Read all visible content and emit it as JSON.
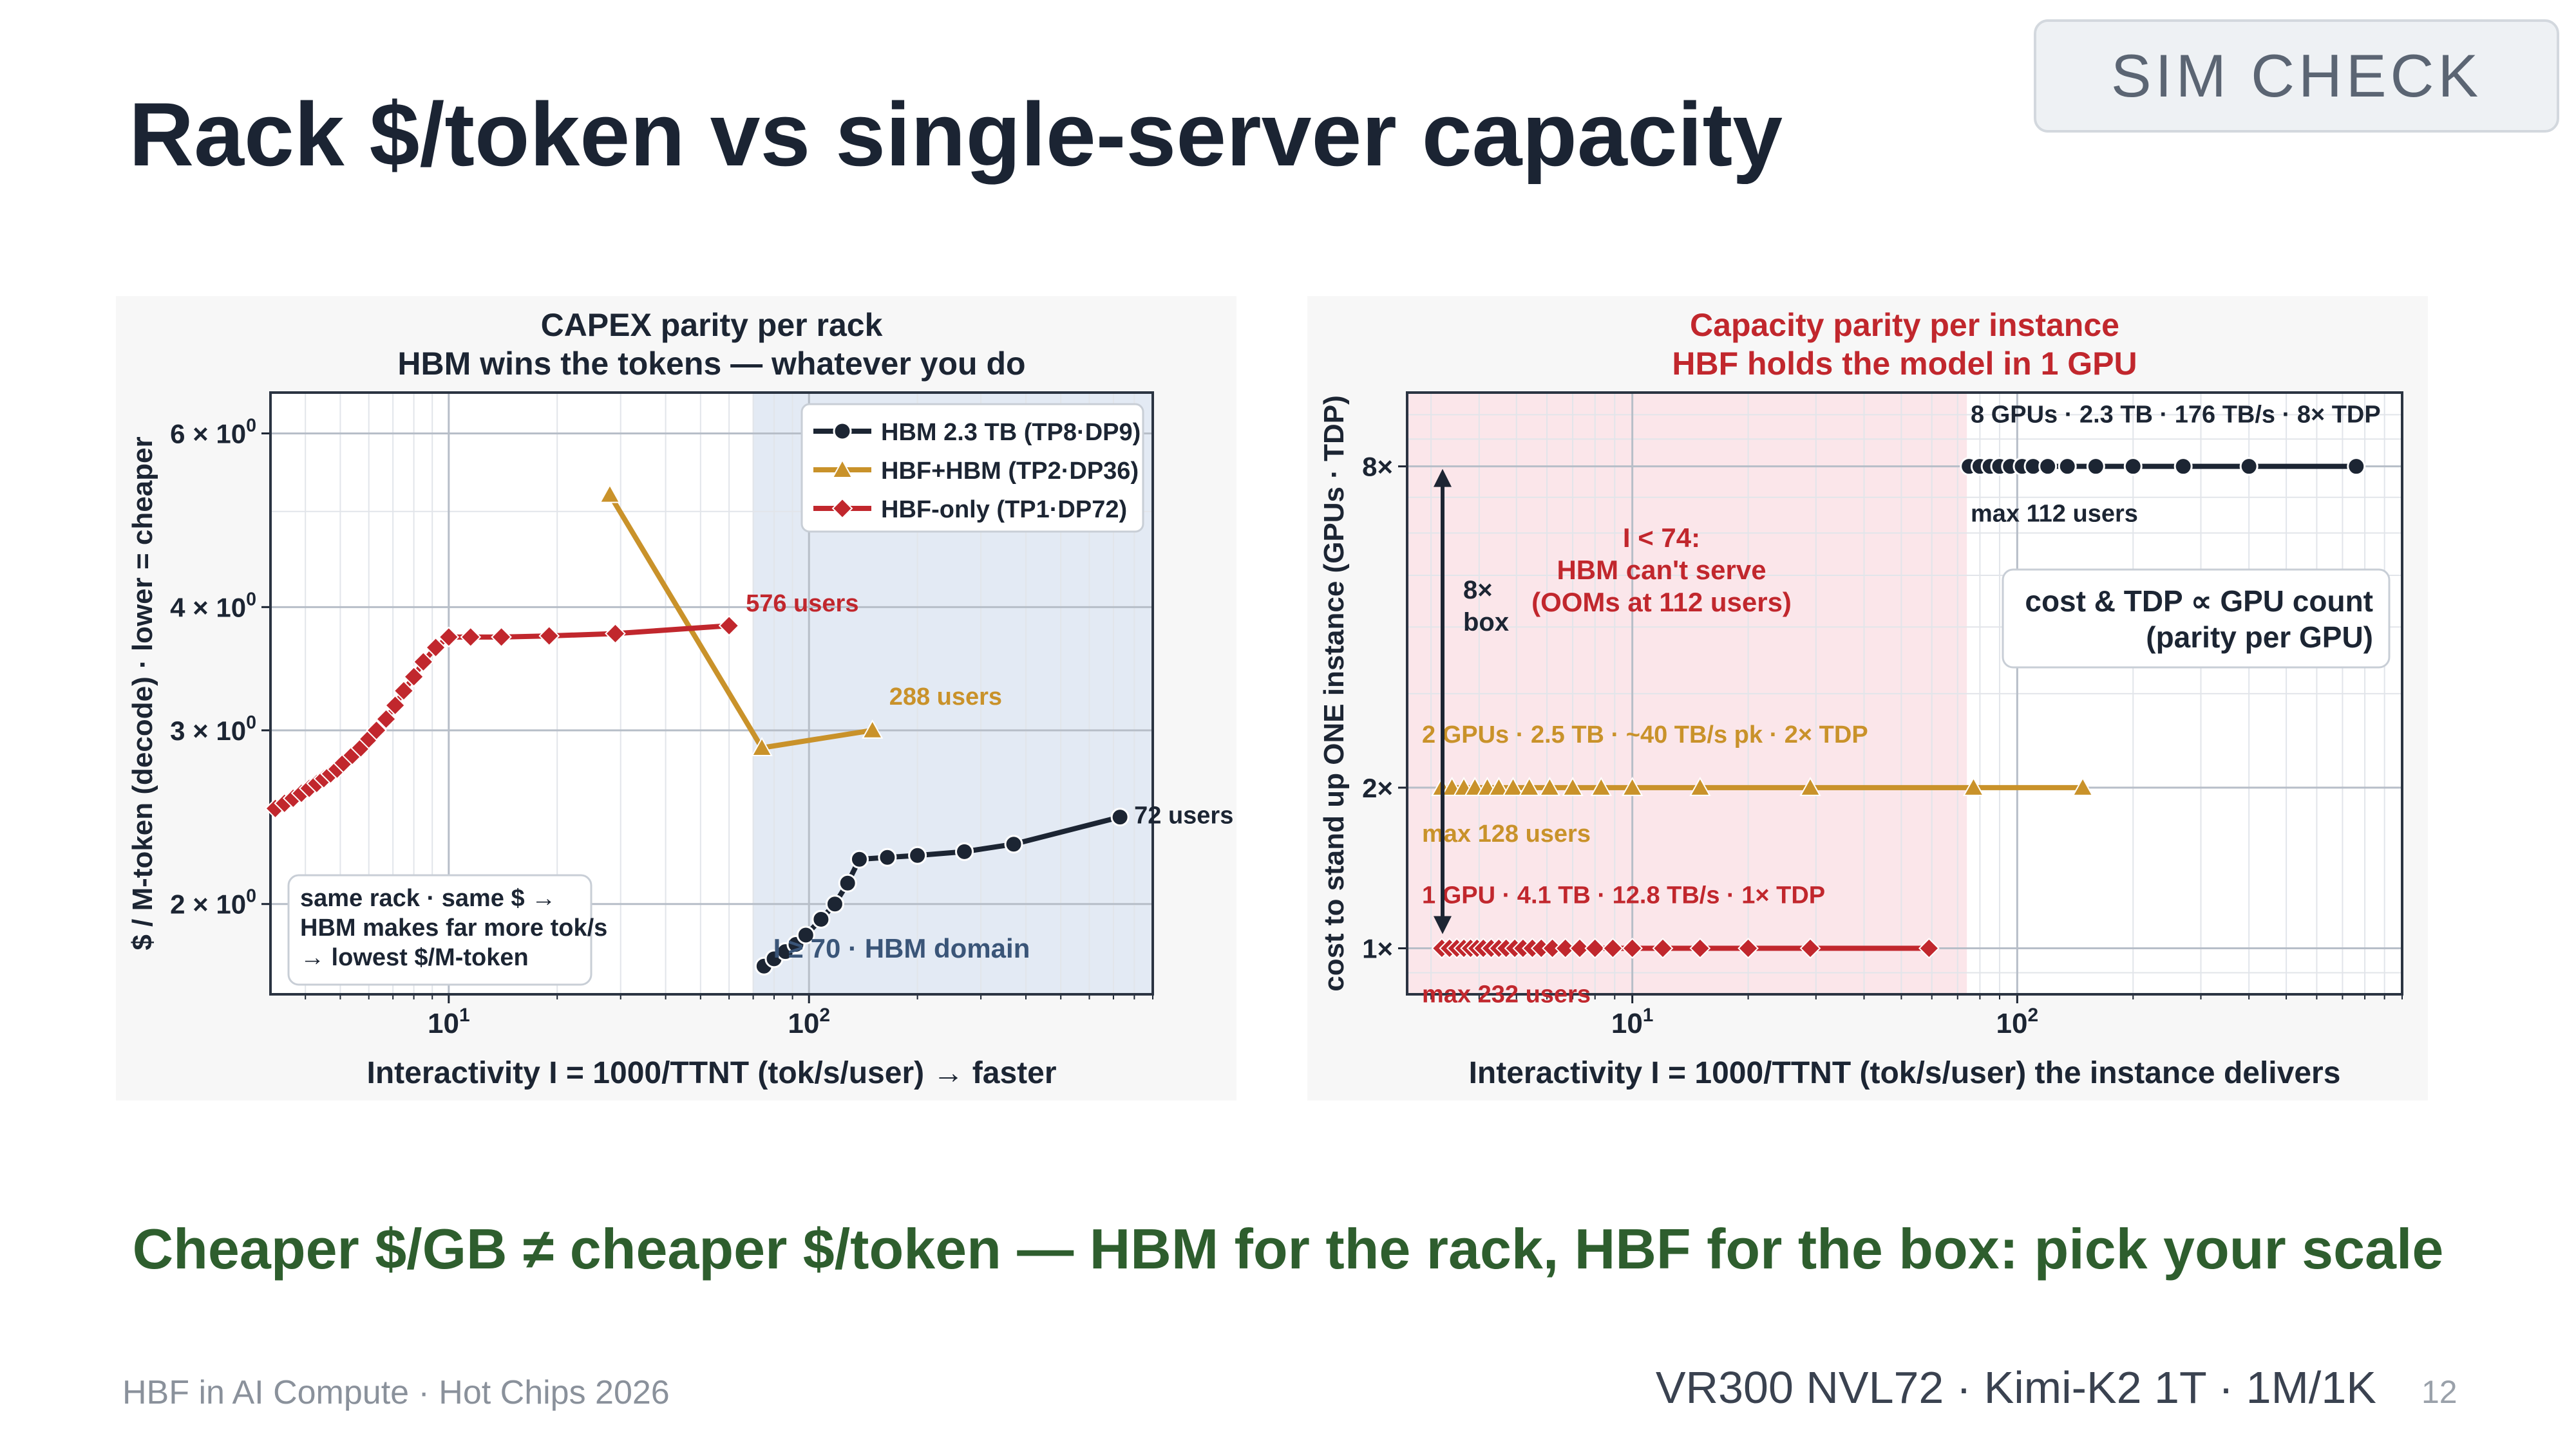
{
  "slide": {
    "badge": "SIM CHECK",
    "title": "Rack $/token  vs  single-server capacity",
    "tagline": "Cheaper $/GB ≠ cheaper $/token — HBM for the rack, HBF for the box: pick your scale",
    "footer_left": "HBF in AI Compute · Hot Chips 2026",
    "footer_right": "VR300 NVL72 · Kimi-K2 1T · 1M/1K",
    "page_number": "12"
  },
  "chart_data": [
    {
      "type": "line",
      "title": "CAPEX parity per rack",
      "subtitle": "HBM wins the tokens — whatever you do",
      "xlabel": "Interactivity  I = 1000/TTNT  (tok/s/user)  → faster",
      "ylabel": "$ / M-token (decode)   ·   lower = cheaper",
      "x_scale": "log",
      "y_scale": "log",
      "xlim": [
        3.2,
        900
      ],
      "ylim": [
        1.62,
        6.6
      ],
      "x_ticks": [
        {
          "value": 10,
          "base": "10",
          "exp": "1"
        },
        {
          "value": 100,
          "base": "10",
          "exp": "2"
        }
      ],
      "y_ticks": [
        {
          "value": 2,
          "base": "2 × 10",
          "exp": "0"
        },
        {
          "value": 3,
          "base": "3 × 10",
          "exp": "0"
        },
        {
          "value": 4,
          "base": "4 × 10",
          "exp": "0"
        },
        {
          "value": 6,
          "base": "6 × 10",
          "exp": "0"
        }
      ],
      "grid": true,
      "legend": "top-right",
      "shaded_region": {
        "x_from": 70,
        "x_to": 900,
        "color": "#e3eaf4",
        "label": "I ≥ 70  ·  HBM domain"
      },
      "note": [
        "same rack · same $ →",
        "HBM makes far more tok/s",
        "→ lowest $/M-token"
      ],
      "series": [
        {
          "name": "HBM 2.3 TB (TP8·DP9)",
          "color": "#1c2533",
          "marker": "circle",
          "points": [
            [
              75,
              1.73
            ],
            [
              80,
              1.76
            ],
            [
              86,
              1.79
            ],
            [
              92,
              1.82
            ],
            [
              98,
              1.86
            ],
            [
              108,
              1.93
            ],
            [
              118,
              2.0
            ],
            [
              128,
              2.1
            ],
            [
              138,
              2.22
            ],
            [
              165,
              2.23
            ],
            [
              200,
              2.24
            ],
            [
              270,
              2.26
            ],
            [
              370,
              2.3
            ],
            [
              730,
              2.45
            ]
          ],
          "end_label": "72 users"
        },
        {
          "name": "HBF+HBM (TP2·DP36)",
          "color": "#c9922a",
          "marker": "triangle",
          "points": [
            [
              28,
              5.2
            ],
            [
              74,
              2.88
            ],
            [
              150,
              3.0
            ]
          ],
          "end_label": "288 users"
        },
        {
          "name": "HBF-only (TP1·DP72)",
          "color": "#c1272d",
          "marker": "diamond",
          "points": [
            [
              3.3,
              2.5
            ],
            [
              3.5,
              2.53
            ],
            [
              3.7,
              2.56
            ],
            [
              3.9,
              2.59
            ],
            [
              4.1,
              2.62
            ],
            [
              4.3,
              2.65
            ],
            [
              4.5,
              2.68
            ],
            [
              4.7,
              2.71
            ],
            [
              4.9,
              2.74
            ],
            [
              5.1,
              2.78
            ],
            [
              5.4,
              2.83
            ],
            [
              5.7,
              2.88
            ],
            [
              6.0,
              2.94
            ],
            [
              6.3,
              3.0
            ],
            [
              6.7,
              3.08
            ],
            [
              7.1,
              3.18
            ],
            [
              7.5,
              3.29
            ],
            [
              8.0,
              3.4
            ],
            [
              8.5,
              3.52
            ],
            [
              9.2,
              3.64
            ],
            [
              10,
              3.73
            ],
            [
              11.5,
              3.73
            ],
            [
              14,
              3.73
            ],
            [
              19,
              3.74
            ],
            [
              29,
              3.76
            ],
            [
              60,
              3.83
            ]
          ],
          "end_label": "576 users"
        }
      ]
    },
    {
      "type": "line",
      "title": "Capacity parity per instance",
      "subtitle": "HBF holds the model in 1 GPU",
      "xlabel": "Interactivity  I = 1000/TTNT  (tok/s/user) the instance delivers",
      "ylabel": "cost to stand up ONE instance  (GPUs · TDP)",
      "x_scale": "log",
      "y_scale": "log",
      "xlim": [
        2.6,
        1000
      ],
      "ylim": [
        0.82,
        11
      ],
      "x_ticks": [
        {
          "value": 10,
          "base": "10",
          "exp": "1"
        },
        {
          "value": 100,
          "base": "10",
          "exp": "2"
        }
      ],
      "y_ticks": [
        {
          "value": 1,
          "label": "1×"
        },
        {
          "value": 2,
          "label": "2×"
        },
        {
          "value": 8,
          "label": "8×"
        }
      ],
      "grid": true,
      "shaded_region": {
        "x_from": 2.6,
        "x_to": 74,
        "color": "#fbe6ea",
        "label": [
          "I < 74:",
          "HBM can't serve",
          "(OOMs at 112 users)"
        ]
      },
      "arrow_label": [
        "8×",
        "box"
      ],
      "note": [
        "cost & TDP  ∝  GPU count",
        "(parity per GPU)"
      ],
      "series": [
        {
          "name": "8 GPUs · 2.3 TB · 176 TB/s · 8× TDP",
          "color": "#1c2533",
          "marker": "circle",
          "max_label": "max 112 users",
          "points": [
            [
              75,
              8
            ],
            [
              80,
              8
            ],
            [
              85,
              8
            ],
            [
              90,
              8
            ],
            [
              96,
              8
            ],
            [
              103,
              8
            ],
            [
              110,
              8
            ],
            [
              120,
              8
            ],
            [
              135,
              8
            ],
            [
              160,
              8
            ],
            [
              200,
              8
            ],
            [
              270,
              8
            ],
            [
              400,
              8
            ],
            [
              760,
              8
            ]
          ]
        },
        {
          "name": "2 GPUs · 2.5 TB · ~40 TB/s pk · 2× TDP",
          "color": "#c9922a",
          "marker": "triangle",
          "max_label": "max 128 users",
          "points": [
            [
              3.2,
              2
            ],
            [
              3.4,
              2
            ],
            [
              3.65,
              2
            ],
            [
              3.9,
              2
            ],
            [
              4.2,
              2
            ],
            [
              4.5,
              2
            ],
            [
              4.9,
              2
            ],
            [
              5.4,
              2
            ],
            [
              6.1,
              2
            ],
            [
              7.0,
              2
            ],
            [
              8.3,
              2
            ],
            [
              10,
              2
            ],
            [
              15,
              2
            ],
            [
              29,
              2
            ],
            [
              77,
              2
            ],
            [
              148,
              2
            ]
          ]
        },
        {
          "name": "1 GPU · 4.1 TB · 12.8 TB/s · 1× TDP",
          "color": "#c1272d",
          "marker": "diamond",
          "max_label": "max 232 users",
          "points": [
            [
              3.2,
              1
            ],
            [
              3.35,
              1
            ],
            [
              3.5,
              1
            ],
            [
              3.65,
              1
            ],
            [
              3.8,
              1
            ],
            [
              3.95,
              1
            ],
            [
              4.1,
              1
            ],
            [
              4.3,
              1
            ],
            [
              4.5,
              1
            ],
            [
              4.7,
              1
            ],
            [
              4.95,
              1
            ],
            [
              5.2,
              1
            ],
            [
              5.5,
              1
            ],
            [
              5.8,
              1
            ],
            [
              6.2,
              1
            ],
            [
              6.7,
              1
            ],
            [
              7.3,
              1
            ],
            [
              8.0,
              1
            ],
            [
              8.9,
              1
            ],
            [
              10,
              1
            ],
            [
              12,
              1
            ],
            [
              15,
              1
            ],
            [
              20,
              1
            ],
            [
              29,
              1
            ],
            [
              59,
              1
            ]
          ]
        }
      ]
    }
  ]
}
